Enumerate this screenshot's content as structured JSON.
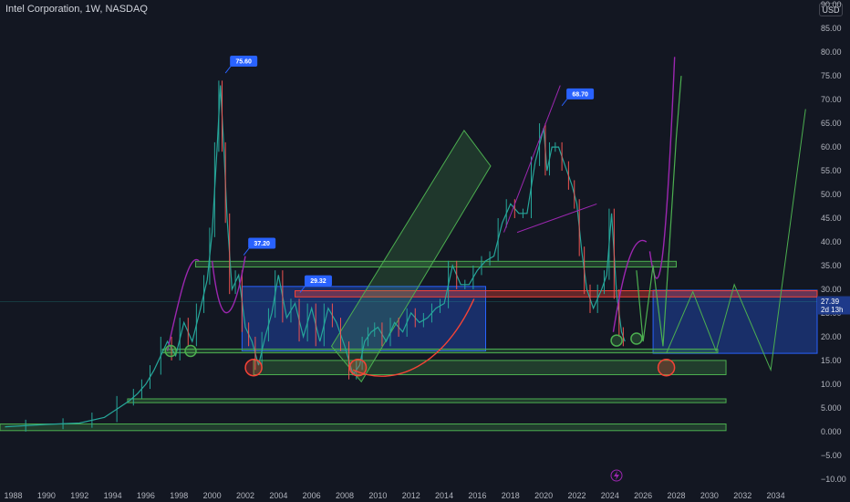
{
  "header": {
    "title": "Intel Corporation, 1W, NASDAQ",
    "currency_button": "USD"
  },
  "price_badge": {
    "price": "27.39",
    "countdown": "2d 13h",
    "color": "#1e3a8a"
  },
  "colors": {
    "background": "#131722",
    "candle_up": "#26a69a",
    "candle_down": "#ef5350",
    "zone_green": "#4caf50",
    "zone_blue": "#2962ff",
    "zone_red": "#f44336",
    "arc_purple": "#9c27b0",
    "projection_green": "#4caf50",
    "callout": "#2962ff"
  },
  "icons": [
    "lightning-icon"
  ],
  "chart_data": {
    "type": "line",
    "title": "Intel Corporation, 1W, NASDAQ",
    "xlabel": "",
    "ylabel": "",
    "x_ticks": [
      "1988",
      "1990",
      "1992",
      "1994",
      "1996",
      "1998",
      "2000",
      "2002",
      "2004",
      "2006",
      "2008",
      "2010",
      "2012",
      "2014",
      "2016",
      "2018",
      "2020",
      "2022",
      "2024",
      "2026",
      "2028",
      "2030",
      "2032",
      "2034"
    ],
    "y_ticks": [
      -10,
      -5,
      0,
      5,
      10,
      15,
      20,
      25,
      30,
      35,
      40,
      45,
      50,
      55,
      60,
      65,
      70,
      75,
      80,
      85,
      90
    ],
    "y_tick_labels": [
      "−10.00",
      "−5.00",
      "0.000",
      "5.000",
      "10.00",
      "15.00",
      "20.00",
      "25.00",
      "30.00",
      "35.00",
      "40.00",
      "45.00",
      "50.00",
      "55.00",
      "60.00",
      "65.00",
      "70.00",
      "75.00",
      "80.00",
      "85.00",
      "90.00"
    ],
    "xlim": [
      1987.2,
      2036.5
    ],
    "ylim": [
      -11,
      91
    ],
    "grid": false,
    "series": [
      {
        "x": [
          1987.5,
          1990,
          1992,
          1993.5,
          1995,
          1995.5,
          1996,
          1996.5,
          1997.3,
          1997.8,
          1998.3,
          1998.8,
          1999.3,
          1999.7,
          2000.0,
          2000.3,
          2000.5,
          2000.7,
          2000.9,
          2001.2,
          2001.6,
          2002.0,
          2002.4,
          2002.8,
          2003.2,
          2003.6,
          2004.0,
          2004.5,
          2005.0,
          2005.5,
          2006.0,
          2006.5,
          2007.0,
          2007.5,
          2008.0,
          2008.5,
          2008.9,
          2009.2,
          2009.6,
          2010.0,
          2010.5,
          2011.0,
          2011.5,
          2012.0,
          2012.5,
          2013.0,
          2013.5,
          2014.0,
          2014.5,
          2015.0,
          2015.5,
          2016.0,
          2016.5,
          2017.0,
          2017.5,
          2018.0,
          2018.5,
          2019.0,
          2019.5,
          2020.0,
          2020.2,
          2020.5,
          2020.9,
          2021.3,
          2021.7,
          2022.0,
          2022.3,
          2022.6,
          2023.0,
          2023.5,
          2023.8,
          2024.1,
          2024.4,
          2024.7,
          2024.9
        ],
        "values": [
          1,
          1.5,
          1.8,
          3,
          6.5,
          8,
          10,
          13,
          19,
          16,
          23,
          19,
          26,
          32,
          42,
          60,
          73,
          60,
          45,
          30,
          33,
          22,
          19,
          14,
          20,
          25,
          33,
          24,
          27,
          20,
          26,
          19,
          26,
          23,
          18,
          12,
          14,
          19,
          21,
          22,
          19,
          23,
          21,
          25,
          23,
          24,
          26,
          27,
          35,
          31,
          31,
          34,
          36,
          37,
          44,
          48,
          46,
          46,
          57,
          64,
          55,
          60,
          60,
          56,
          52,
          48,
          38,
          30,
          26,
          30,
          33,
          46,
          29,
          21,
          19
        ]
      }
    ],
    "callouts": [
      "75.60",
      "37.20",
      "29.32",
      "68.70"
    ],
    "current_price": 27.39
  }
}
